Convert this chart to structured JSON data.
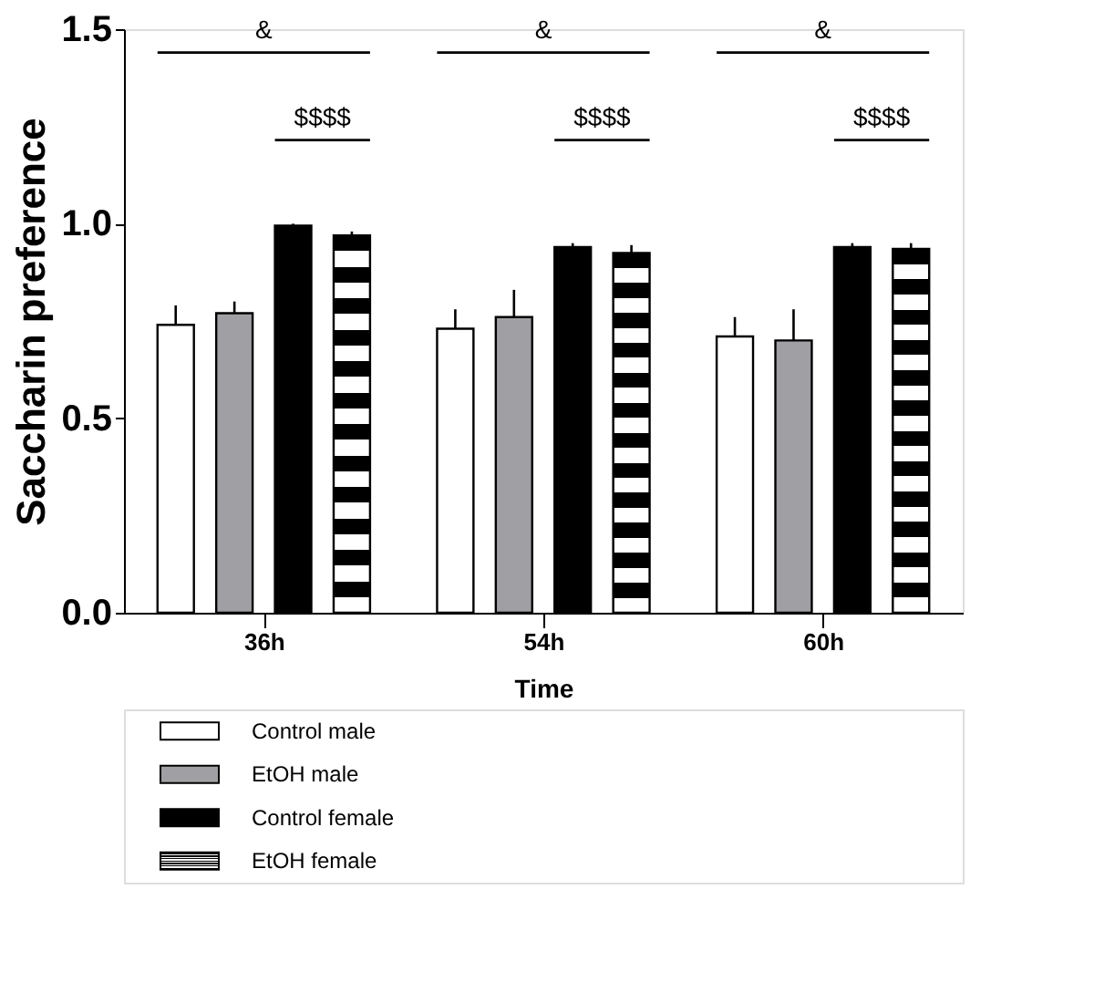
{
  "chart_data": {
    "type": "bar",
    "xlabel": "Time",
    "ylabel": "Saccharin preference",
    "categories": [
      "36h",
      "54h",
      "60h"
    ],
    "series": [
      {
        "name": "Control male",
        "color": "#ffffff",
        "values": [
          0.74,
          0.73,
          0.71
        ],
        "errors": [
          [
            0.74,
            0.79
          ],
          [
            0.73,
            0.78
          ],
          [
            0.71,
            0.76
          ]
        ]
      },
      {
        "name": "EtOH male",
        "color": "#a0a0a4",
        "values": [
          0.77,
          0.76,
          0.7
        ],
        "errors": [
          [
            0.77,
            0.8
          ],
          [
            0.76,
            0.83
          ],
          [
            0.7,
            0.78
          ]
        ]
      },
      {
        "name": "Control female",
        "color": "#000000",
        "values": [
          0.995,
          0.94,
          0.94
        ],
        "errors": [
          [
            0.995,
            1.0
          ],
          [
            0.94,
            0.95
          ],
          [
            0.94,
            0.95
          ]
        ]
      },
      {
        "name": "EtOH female",
        "color": "#000000",
        "values": [
          0.97,
          0.925,
          0.935
        ],
        "errors": [
          [
            0.97,
            0.98
          ],
          [
            0.925,
            0.945
          ],
          [
            0.935,
            0.95
          ]
        ]
      }
    ],
    "annotations": [
      "&",
      "$$$$",
      "&",
      "$$$$",
      "&",
      "$$$$"
    ],
    "ylim": [
      0,
      1.5
    ],
    "yticks": [
      {
        "value": 0,
        "label": "0.0"
      },
      {
        "value": 0.5,
        "label": "0.5"
      },
      {
        "value": 1,
        "label": "1.0"
      },
      {
        "value": 1.5,
        "label": "1.5"
      }
    ],
    "grid": false,
    "legend": "bottom"
  }
}
